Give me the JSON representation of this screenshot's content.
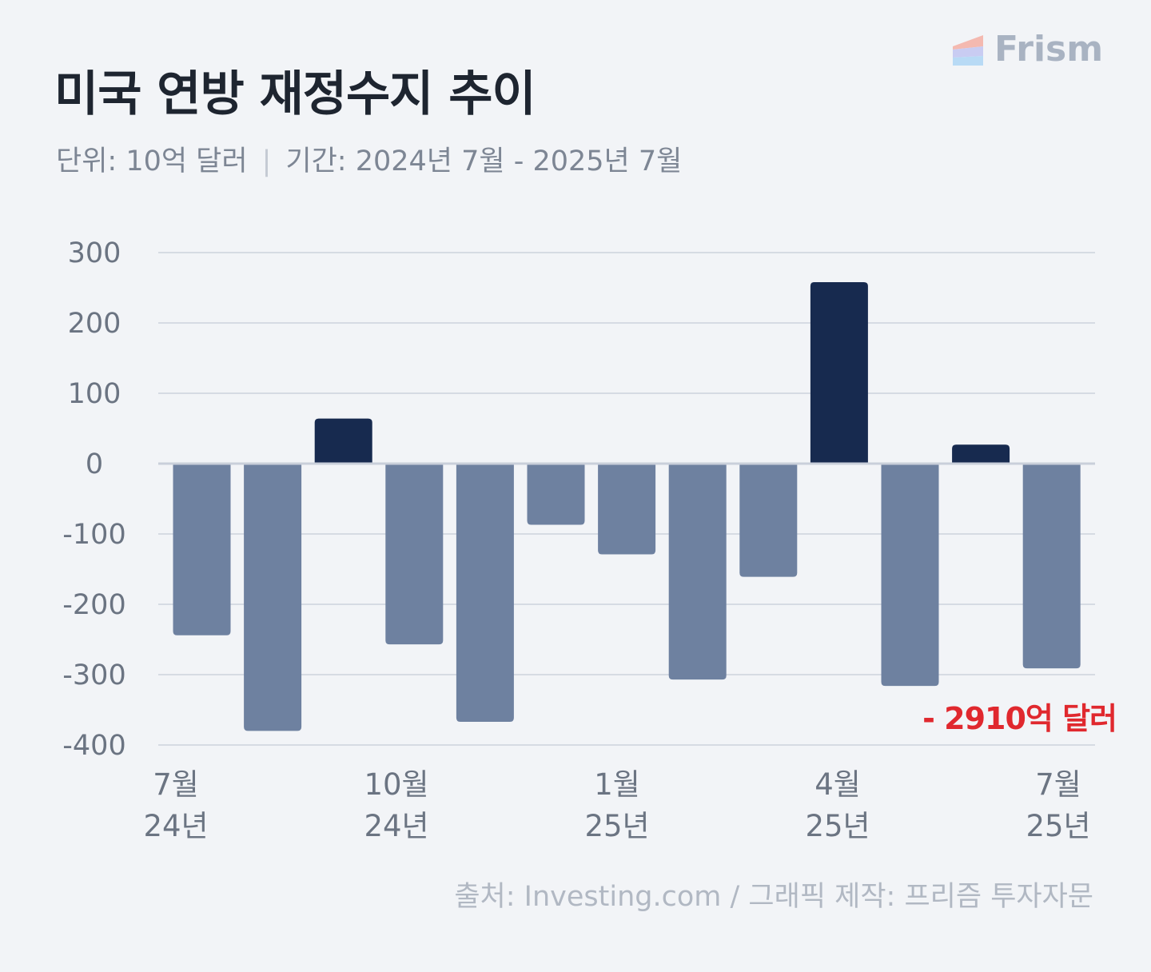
{
  "brand": {
    "name": "Frism",
    "colors": [
      "#f4b9b0",
      "#c9ccf2",
      "#b8daf5"
    ]
  },
  "title": "미국 연방 재정수지 추이",
  "subtitle": {
    "unit": "단위: 10억 달러",
    "period": "기간: 2024년 7월 - 2025년 7월"
  },
  "source": "출처: Investing.com / 그래픽 제작: 프리즘 투자자문",
  "colors": {
    "positive": "#172a4f",
    "negative": "#6e81a0",
    "grid": "#d6dbe3",
    "zero": "#c9cfda",
    "annotation": "#e0282e",
    "tick": "#6b7482"
  },
  "chart_data": {
    "type": "bar",
    "x": [
      "2024-07",
      "2024-08",
      "2024-09",
      "2024-10",
      "2024-11",
      "2024-12",
      "2025-01",
      "2025-02",
      "2025-03",
      "2025-04",
      "2025-05",
      "2025-06",
      "2025-07"
    ],
    "values": [
      -244,
      -380,
      64,
      -257,
      -367,
      -87,
      -129,
      -307,
      -161,
      258,
      -316,
      27,
      -291
    ],
    "ylim": [
      -400,
      300
    ],
    "y_ticks": [
      "300",
      "200",
      "100",
      "0",
      "-100",
      "-200",
      "-300",
      "-400"
    ],
    "x_tick_labels": [
      {
        "index": 0,
        "month": "7월",
        "year": "24년"
      },
      {
        "index": 3,
        "month": "10월",
        "year": "24년"
      },
      {
        "index": 6,
        "month": "1월",
        "year": "25년"
      },
      {
        "index": 9,
        "month": "4월",
        "year": "25년"
      },
      {
        "index": 12,
        "month": "7월",
        "year": "25년"
      }
    ],
    "annotation": {
      "index": 12,
      "text": "- 2910억 달러"
    },
    "grid": true,
    "legend": "none"
  }
}
